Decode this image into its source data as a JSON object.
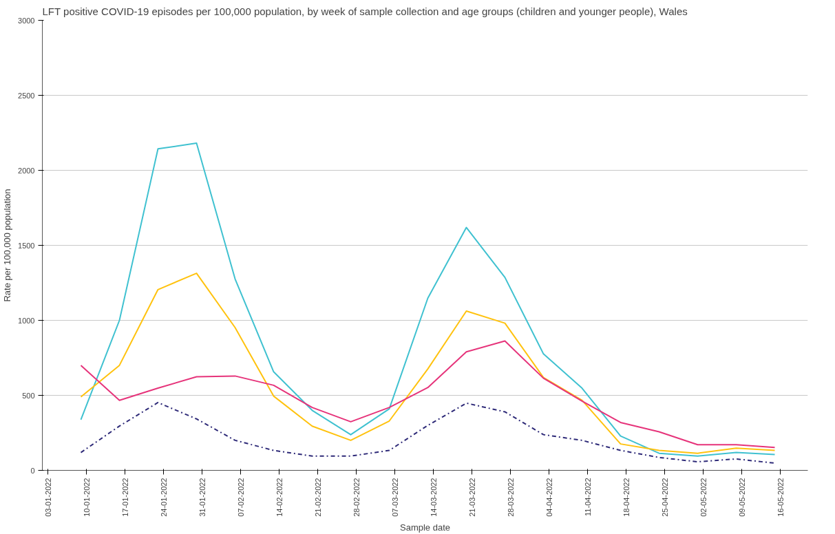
{
  "chart_data": {
    "type": "line",
    "title": "LFT positive COVID-19 episodes per 100,000 population, by week of sample collection and age groups (children and younger people), Wales",
    "xlabel": "Sample date",
    "ylabel": "Rate per 100,000 population",
    "x": [
      "2022-01-09",
      "2022-01-16",
      "2022-01-23",
      "2022-01-30",
      "2022-02-06",
      "2022-02-13",
      "2022-02-20",
      "2022-02-27",
      "2022-03-06",
      "2022-03-13",
      "2022-03-20",
      "2022-03-27",
      "2022-04-03",
      "2022-04-10",
      "2022-04-17",
      "2022-04-24",
      "2022-05-01",
      "2022-05-08",
      "2022-05-15"
    ],
    "series": [
      {
        "color": "#3fc1d0",
        "line_style": "solid",
        "values": [
          338,
          1000,
          2143,
          2181,
          1276,
          657,
          400,
          238,
          410,
          1148,
          1619,
          1286,
          776,
          548,
          229,
          114,
          95,
          119,
          105
        ]
      },
      {
        "color": "#ffc20e",
        "line_style": "solid",
        "values": [
          490,
          700,
          1205,
          1314,
          952,
          495,
          295,
          200,
          329,
          676,
          1062,
          981,
          619,
          467,
          176,
          133,
          114,
          148,
          133
        ]
      },
      {
        "color": "#e6337a",
        "line_style": "solid",
        "values": [
          700,
          467,
          548,
          624,
          629,
          567,
          419,
          324,
          419,
          552,
          790,
          862,
          614,
          462,
          319,
          257,
          171,
          171,
          152
        ]
      },
      {
        "color": "#2e2a78",
        "line_style": "dashed",
        "values": [
          119,
          295,
          452,
          343,
          200,
          133,
          95,
          95,
          133,
          300,
          448,
          390,
          238,
          200,
          133,
          86,
          57,
          76,
          48
        ]
      }
    ],
    "xlim": [
      "2022-01-02",
      "2022-05-21"
    ],
    "xticks": [
      {
        "value": "2022-01-03",
        "label": "03-01-2022"
      },
      {
        "value": "2022-01-10",
        "label": "10-01-2022"
      },
      {
        "value": "2022-01-17",
        "label": "17-01-2022"
      },
      {
        "value": "2022-01-24",
        "label": "24-01-2022"
      },
      {
        "value": "2022-01-31",
        "label": "31-01-2022"
      },
      {
        "value": "2022-02-07",
        "label": "07-02-2022"
      },
      {
        "value": "2022-02-14",
        "label": "14-02-2022"
      },
      {
        "value": "2022-02-21",
        "label": "21-02-2022"
      },
      {
        "value": "2022-02-28",
        "label": "28-02-2022"
      },
      {
        "value": "2022-03-07",
        "label": "07-03-2022"
      },
      {
        "value": "2022-03-14",
        "label": "14-03-2022"
      },
      {
        "value": "2022-03-21",
        "label": "21-03-2022"
      },
      {
        "value": "2022-03-28",
        "label": "28-03-2022"
      },
      {
        "value": "2022-04-04",
        "label": "04-04-2022"
      },
      {
        "value": "2022-04-11",
        "label": "11-04-2022"
      },
      {
        "value": "2022-04-18",
        "label": "18-04-2022"
      },
      {
        "value": "2022-04-25",
        "label": "25-04-2022"
      },
      {
        "value": "2022-05-02",
        "label": "02-05-2022"
      },
      {
        "value": "2022-05-09",
        "label": "09-05-2022"
      },
      {
        "value": "2022-05-16",
        "label": "16-05-2022"
      }
    ],
    "ylim": [
      0,
      3000
    ],
    "yticks": [
      0,
      500,
      1000,
      1500,
      2000,
      2500,
      3000
    ],
    "grid": "y"
  }
}
